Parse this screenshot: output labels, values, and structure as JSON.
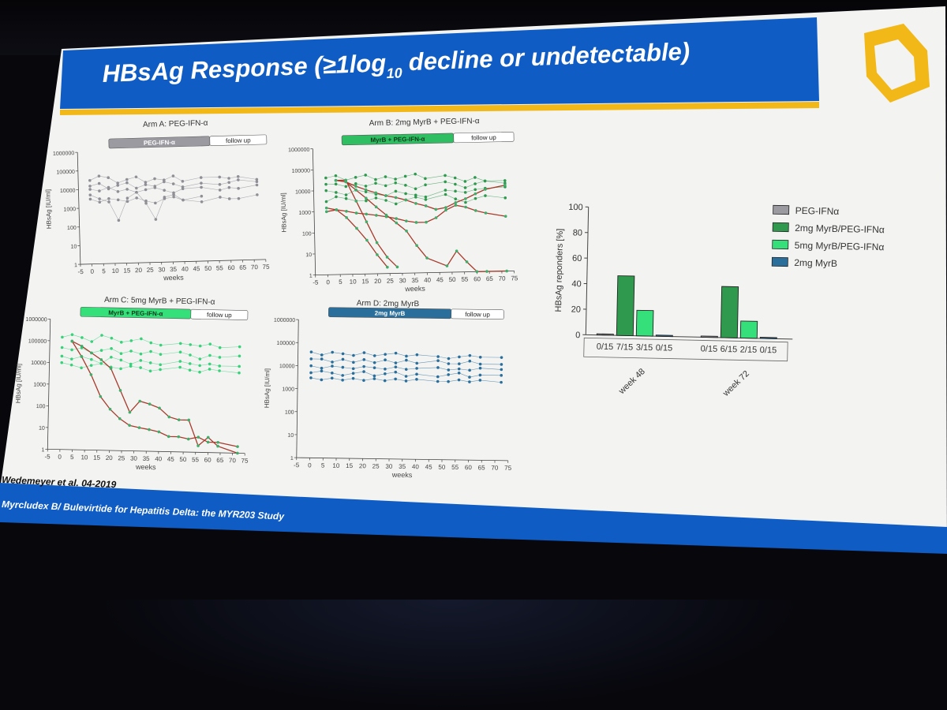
{
  "slide": {
    "title_pre": "HBsAg Response (≥1log",
    "title_sub": "10",
    "title_post": " decline or undetectable)",
    "citation": "Wedemeyer et al. 04-2019",
    "footer": "Myrcludex B/ Bulevirtide for Hepatitis Delta: the MYR203 Study",
    "logo": "hexagon-logo"
  },
  "colors": {
    "banner": "#0f5cc4",
    "gold": "#f2b817",
    "grey": "#9a9aa0",
    "dark_green": "#2f9a4e",
    "bright_green": "#35e07a",
    "blue": "#2a6f9c",
    "red": "#a83a2a"
  },
  "arms": [
    {
      "title": "Arm A: PEG-IFN-α",
      "treatment": "PEG-IFN-α",
      "follow": "follow up",
      "ylabel": "HBsAg [IU/ml]",
      "xlabel": "weeks"
    },
    {
      "title": "Arm B: 2mg MyrB + PEG-IFN-α",
      "treatment": "MyrB + PEG-IFN-α",
      "follow": "follow up",
      "ylabel": "HBsAg [IU/ml]",
      "xlabel": "weeks"
    },
    {
      "title": "Arm C: 5mg MyrB + PEG-IFN-α",
      "treatment": "MyrB + PEG-IFN-α",
      "follow": "follow up",
      "ylabel": "HBsAg [IU/ml]",
      "xlabel": "weeks"
    },
    {
      "title": "Arm D: 2mg MyrB",
      "treatment": "2mg MyrB",
      "follow": "follow up",
      "ylabel": "HBsAg [IU/ml]",
      "xlabel": "weeks"
    }
  ],
  "axis": {
    "y_ticks": [
      "1",
      "10",
      "100",
      "1000",
      "10000",
      "100000",
      "1000000"
    ],
    "x_ticks": [
      "-5",
      "0",
      "5",
      "10",
      "15",
      "20",
      "25",
      "30",
      "35",
      "40",
      "45",
      "50",
      "55",
      "60",
      "65",
      "70",
      "75"
    ]
  },
  "chart_data": [
    {
      "type": "line",
      "title": "Arm A: PEG-IFN-α",
      "xlabel": "weeks",
      "ylabel": "HBsAg [IU/ml]",
      "ylim": [
        1,
        1000000
      ],
      "xlim": [
        -5,
        75
      ],
      "yscale": "log",
      "series": [
        {
          "x": [
            0,
            4,
            8,
            12,
            16,
            20,
            24,
            28,
            32,
            36,
            40,
            48,
            56,
            60,
            64,
            72
          ],
          "values": [
            30000,
            50000,
            40000,
            20000,
            30000,
            40000,
            20000,
            30000,
            25000,
            40000,
            20000,
            30000,
            30000,
            25000,
            30000,
            20000
          ]
        },
        {
          "x": [
            0,
            4,
            8,
            12,
            16,
            20,
            24,
            28,
            32,
            36,
            40,
            48,
            56,
            60,
            64,
            72
          ],
          "values": [
            15000,
            20000,
            10000,
            15000,
            20000,
            10000,
            15000,
            12000,
            20000,
            15000,
            10000,
            15000,
            12000,
            15000,
            20000,
            15000
          ]
        },
        {
          "x": [
            0,
            4,
            8,
            12,
            16,
            20,
            24,
            28,
            32,
            36,
            40,
            48,
            56,
            60,
            64,
            72
          ],
          "values": [
            10000,
            8000,
            12000,
            7000,
            9000,
            6000,
            8000,
            10000,
            7000,
            5000,
            8000,
            9000,
            6000,
            8000,
            7000,
            10000
          ]
        },
        {
          "x": [
            0,
            4,
            8,
            12,
            16,
            20,
            24,
            28,
            32,
            36,
            40,
            48,
            56,
            60,
            64,
            72
          ],
          "values": [
            3000,
            2000,
            3000,
            2500,
            2000,
            3000,
            2000,
            1500,
            2500,
            3000,
            2000,
            1500,
            2500,
            2000,
            2000,
            3000
          ]
        },
        {
          "x": [
            0,
            4,
            8,
            12,
            16,
            20,
            24,
            28,
            32,
            36,
            40,
            48
          ],
          "values": [
            5000,
            3000,
            2000,
            200,
            3000,
            6000,
            1500,
            200,
            3000,
            4000,
            2000,
            3000
          ]
        }
      ]
    },
    {
      "type": "line",
      "title": "Arm B: 2mg MyrB + PEG-IFN-α",
      "xlabel": "weeks",
      "ylabel": "HBsAg [IU/ml]",
      "ylim": [
        1,
        1000000
      ],
      "xlim": [
        -5,
        75
      ],
      "yscale": "log",
      "series": [
        {
          "x": [
            0,
            4,
            8,
            12,
            16,
            20,
            24,
            28,
            32,
            36,
            40,
            48,
            52,
            56,
            60,
            64,
            72
          ],
          "values": [
            40000,
            50000,
            30000,
            40000,
            50000,
            30000,
            40000,
            30000,
            40000,
            50000,
            30000,
            40000,
            30000,
            20000,
            30000,
            20000,
            20000
          ]
        },
        {
          "x": [
            0,
            4,
            8,
            12,
            16,
            20,
            24,
            28,
            32,
            36,
            40,
            48,
            52,
            56,
            60,
            64,
            72
          ],
          "values": [
            20000,
            20000,
            15000,
            20000,
            15000,
            20000,
            15000,
            20000,
            15000,
            10000,
            15000,
            20000,
            15000,
            10000,
            15000,
            20000,
            15000
          ]
        },
        {
          "x": [
            0,
            4,
            8,
            12,
            16,
            20,
            24,
            28,
            32,
            36,
            40,
            48,
            52,
            56,
            60,
            64,
            72
          ],
          "values": [
            10000,
            8000,
            6000,
            10000,
            8000,
            6000,
            5000,
            8000,
            6000,
            5000,
            4000,
            8000,
            7000,
            6000,
            8000,
            9000,
            10000
          ]
        },
        {
          "x": [
            0,
            4,
            8,
            12,
            16,
            20,
            24,
            28,
            32,
            36,
            40,
            48,
            52,
            56,
            60,
            64,
            72
          ],
          "values": [
            3000,
            5000,
            4000,
            3000,
            3000,
            4000,
            3000,
            2000,
            3000,
            4000,
            3000,
            5000,
            3000,
            2000,
            3000,
            4000,
            3000
          ]
        },
        {
          "x": [
            0,
            4,
            8,
            12,
            16,
            20,
            24
          ],
          "values": [
            1500,
            1200,
            500,
            150,
            40,
            8,
            2
          ],
          "highlight": true
        },
        {
          "x": [
            4,
            8,
            12,
            16,
            20,
            24,
            28
          ],
          "values": [
            30000,
            30000,
            3000,
            300,
            30,
            6,
            2
          ],
          "highlight": true
        },
        {
          "x": [
            4,
            8,
            12,
            16,
            20,
            24,
            28,
            32,
            36,
            40,
            48,
            52,
            56,
            60,
            64,
            72
          ],
          "values": [
            30000,
            25000,
            10000,
            4000,
            1500,
            600,
            250,
            100,
            20,
            5,
            2,
            10,
            3,
            1,
            1,
            1
          ],
          "highlight": true
        },
        {
          "x": [
            4,
            8,
            12,
            16,
            20,
            24,
            28,
            32,
            36,
            40,
            44,
            48,
            52,
            56,
            60,
            64,
            72
          ],
          "values": [
            30000,
            25000,
            15000,
            10000,
            7000,
            5000,
            4000,
            3000,
            2000,
            1500,
            1000,
            1200,
            2000,
            3000,
            5000,
            8000,
            12000
          ],
          "highlight": true
        },
        {
          "x": [
            0,
            4,
            8,
            12,
            16,
            20,
            24,
            28,
            32,
            36,
            40,
            44,
            48,
            52,
            56,
            60,
            64,
            72
          ],
          "values": [
            1000,
            1200,
            1000,
            800,
            700,
            600,
            500,
            400,
            300,
            250,
            250,
            400,
            900,
            1500,
            1200,
            800,
            600,
            400
          ],
          "highlight": true
        }
      ]
    },
    {
      "type": "line",
      "title": "Arm C: 5mg MyrB + PEG-IFN-α",
      "xlabel": "weeks",
      "ylabel": "HBsAg [IU/ml]",
      "ylim": [
        1,
        1000000
      ],
      "xlim": [
        -5,
        75
      ],
      "yscale": "log",
      "series": [
        {
          "x": [
            0,
            4,
            8,
            12,
            16,
            20,
            24,
            28,
            32,
            36,
            40,
            48,
            52,
            56,
            60,
            64,
            72
          ],
          "values": [
            150000,
            200000,
            150000,
            100000,
            200000,
            150000,
            100000,
            120000,
            150000,
            100000,
            80000,
            100000,
            90000,
            80000,
            100000,
            70000,
            80000
          ]
        },
        {
          "x": [
            0,
            4,
            8,
            12,
            16,
            20,
            24,
            28,
            32,
            36,
            40,
            48,
            52,
            56,
            60,
            64,
            72
          ],
          "values": [
            50000,
            40000,
            50000,
            30000,
            40000,
            50000,
            30000,
            40000,
            30000,
            40000,
            30000,
            40000,
            30000,
            20000,
            30000,
            25000,
            30000
          ]
        },
        {
          "x": [
            0,
            4,
            8,
            12,
            16,
            20,
            24,
            28,
            32,
            36,
            40,
            48,
            52,
            56,
            60,
            64,
            72
          ],
          "values": [
            20000,
            15000,
            20000,
            15000,
            10000,
            20000,
            15000,
            10000,
            15000,
            12000,
            10000,
            15000,
            12000,
            10000,
            12000,
            10000,
            10000
          ]
        },
        {
          "x": [
            0,
            4,
            8,
            12,
            16,
            20,
            24,
            28,
            32,
            36,
            40,
            48,
            52,
            56,
            60,
            64,
            72
          ],
          "values": [
            10000,
            8000,
            6000,
            8000,
            10000,
            7000,
            6000,
            8000,
            7000,
            5000,
            6000,
            8000,
            6000,
            5000,
            7000,
            6000,
            5000
          ]
        },
        {
          "x": [
            4,
            8,
            12,
            16,
            20,
            24,
            28,
            32,
            36,
            40,
            44,
            48,
            52,
            56,
            60,
            64,
            72
          ],
          "values": [
            100000,
            20000,
            3000,
            300,
            80,
            30,
            15,
            12,
            10,
            8,
            5,
            5,
            4,
            5,
            3,
            3,
            2
          ],
          "highlight": true
        },
        {
          "x": [
            4,
            8,
            12,
            16,
            20,
            24,
            28,
            32,
            36,
            40,
            44,
            48,
            52,
            56,
            60,
            64,
            72
          ],
          "values": [
            100000,
            60000,
            30000,
            15000,
            6000,
            600,
            60,
            200,
            150,
            100,
            40,
            30,
            30,
            2,
            5,
            2,
            1
          ],
          "highlight": true
        }
      ]
    },
    {
      "type": "line",
      "title": "Arm D: 2mg MyrB",
      "xlabel": "weeks",
      "ylabel": "HBsAg [IU/ml]",
      "ylim": [
        1,
        1000000
      ],
      "xlim": [
        -5,
        75
      ],
      "yscale": "log",
      "series": [
        {
          "x": [
            0,
            4,
            8,
            12,
            16,
            20,
            24,
            28,
            32,
            36,
            40,
            48,
            52,
            56,
            60,
            64,
            72
          ],
          "values": [
            40000,
            30000,
            40000,
            35000,
            30000,
            40000,
            30000,
            35000,
            40000,
            30000,
            35000,
            30000,
            25000,
            30000,
            35000,
            30000,
            30000
          ]
        },
        {
          "x": [
            0,
            4,
            8,
            12,
            16,
            20,
            24,
            28,
            32,
            36,
            40,
            48,
            52,
            56,
            60,
            64,
            72
          ],
          "values": [
            20000,
            20000,
            15000,
            20000,
            15000,
            20000,
            15000,
            20000,
            15000,
            20000,
            15000,
            20000,
            15000,
            15000,
            20000,
            15000,
            15000
          ]
        },
        {
          "x": [
            0,
            4,
            8,
            12,
            16,
            20,
            24,
            28,
            32,
            36,
            40,
            48,
            52,
            56,
            60,
            64,
            72
          ],
          "values": [
            10000,
            8000,
            10000,
            9000,
            8000,
            10000,
            9000,
            8000,
            10000,
            8000,
            9000,
            10000,
            8000,
            9000,
            8000,
            10000,
            9000
          ]
        },
        {
          "x": [
            0,
            4,
            8,
            12,
            16,
            20,
            24,
            28,
            32,
            36,
            40,
            48,
            52,
            56,
            60,
            64,
            72
          ],
          "values": [
            5000,
            6000,
            5000,
            4000,
            5000,
            6000,
            4000,
            5000,
            6000,
            4000,
            5000,
            4000,
            5000,
            6000,
            4000,
            5000,
            5000
          ]
        },
        {
          "x": [
            0,
            4,
            8,
            12,
            16,
            20,
            24,
            28,
            32,
            36,
            40,
            48,
            52,
            56,
            60,
            64,
            72
          ],
          "values": [
            3000,
            2500,
            3000,
            2500,
            3000,
            2500,
            3000,
            2500,
            3000,
            2500,
            3000,
            2500,
            2500,
            3000,
            2500,
            3000,
            2500
          ]
        }
      ]
    },
    {
      "type": "bar",
      "ylabel": "HBsAg reponders [%]",
      "ylim": [
        0,
        100
      ],
      "y_ticks": [
        0,
        20,
        40,
        60,
        80,
        100
      ],
      "groups": [
        "week 48",
        "week 72"
      ],
      "series": [
        {
          "name": "PEG-IFNα",
          "color": "#9a9aa0",
          "values": [
            0,
            0
          ],
          "labels": [
            "0/15",
            "0/15"
          ]
        },
        {
          "name": "2mg MyrB/PEG-IFNα",
          "color": "#2f9a4e",
          "values": [
            46.7,
            40
          ],
          "labels": [
            "7/15",
            "6/15"
          ]
        },
        {
          "name": "5mg MyrB/PEG-IFNα",
          "color": "#35e07a",
          "values": [
            20,
            13.3
          ],
          "labels": [
            "3/15",
            "2/15"
          ]
        },
        {
          "name": "2mg MyrB",
          "color": "#2a6f9c",
          "values": [
            0,
            0
          ],
          "labels": [
            "0/15",
            "0/15"
          ]
        }
      ],
      "legend_position": "top-right"
    }
  ]
}
